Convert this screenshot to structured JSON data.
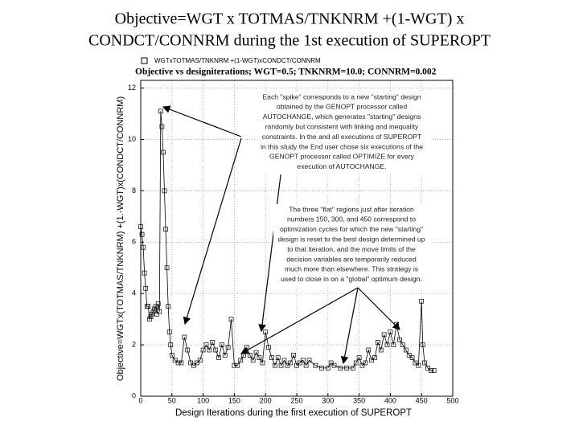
{
  "slide_title": [
    "Objective=WGT x TOTMAS/TNKNRM +(1-WGT) x",
    "CONDCT/CONNRM during the 1st execution of SUPEROPT"
  ],
  "chart_data": {
    "type": "line",
    "title": "Objective vs designiterations; WGT=0.5; TNKNRM=10.0; CONNRM=0.002",
    "x_label": "Design Iterations during the first execution of SUPEROPT",
    "y_label": "Objective=WGTx(TOTMAS/TNKNRM) +(1.-WGT)x(CONDCT/CONNRM)",
    "xlim": [
      0,
      500
    ],
    "xticks": [
      0,
      50,
      100,
      150,
      200,
      250,
      300,
      350,
      400,
      450,
      500
    ],
    "ylim": [
      0,
      12.3
    ],
    "yticks": [
      0,
      2,
      4,
      6,
      8,
      10,
      12
    ],
    "grid": true,
    "series": [
      {
        "name": "WGTxTOTMAS/TNKNRM +(1-WGT)xCONDCT/CONNRM",
        "color": "#000000",
        "x": [
          0,
          2,
          4,
          6,
          8,
          10,
          12,
          14,
          16,
          18,
          20,
          22,
          24,
          26,
          28,
          30,
          32,
          34,
          36,
          38,
          40,
          42,
          44,
          46,
          48,
          50,
          55,
          60,
          65,
          70,
          75,
          80,
          85,
          90,
          95,
          100,
          105,
          110,
          115,
          120,
          125,
          130,
          135,
          140,
          145,
          150,
          155,
          160,
          165,
          170,
          175,
          180,
          185,
          190,
          195,
          200,
          205,
          210,
          215,
          220,
          225,
          230,
          235,
          240,
          245,
          250,
          255,
          260,
          265,
          270,
          280,
          290,
          300,
          305,
          310,
          320,
          330,
          340,
          345,
          350,
          355,
          360,
          365,
          370,
          375,
          380,
          385,
          390,
          395,
          400,
          405,
          410,
          415,
          420,
          425,
          430,
          435,
          440,
          445,
          450,
          452,
          455,
          460,
          465,
          470
        ],
        "values": [
          6.6,
          6.3,
          5.8,
          4.8,
          4.2,
          3.5,
          3.5,
          3.0,
          3.1,
          3.2,
          3.3,
          3.4,
          3.5,
          3.2,
          3.6,
          3.3,
          11.1,
          10.5,
          9.5,
          8.0,
          6.5,
          5.0,
          3.5,
          2.5,
          2.0,
          1.6,
          1.4,
          1.3,
          1.3,
          2.3,
          1.8,
          1.3,
          1.2,
          1.3,
          1.4,
          1.8,
          2.0,
          1.8,
          2.1,
          1.8,
          1.5,
          2.0,
          1.6,
          1.9,
          3.0,
          1.2,
          1.2,
          1.4,
          1.6,
          1.9,
          1.6,
          1.4,
          1.7,
          1.5,
          1.3,
          2.5,
          1.9,
          1.5,
          1.2,
          1.5,
          1.2,
          1.4,
          1.2,
          1.3,
          1.6,
          1.2,
          1.3,
          1.4,
          1.2,
          1.4,
          1.2,
          1.1,
          1.1,
          1.3,
          1.2,
          1.1,
          1.1,
          1.1,
          1.3,
          1.5,
          1.2,
          1.3,
          1.8,
          1.4,
          1.5,
          2.1,
          1.8,
          2.4,
          2.0,
          2.5,
          2.0,
          2.8,
          2.2,
          2.0,
          1.8,
          1.6,
          1.5,
          1.3,
          1.2,
          3.7,
          2.0,
          1.3,
          1.1,
          1.0,
          1.0
        ]
      }
    ],
    "annotations": [
      [
        "Each \"spike\" corresponds to a new \"starting\" design",
        "obtained by the GENOPT processor called",
        "AUTOCHANGE, which generates \"starting\" designs",
        "randomly but consistent with linking and inequality",
        "constraints. In the and all executions of SUPEROPT",
        "in this study the End user chose six executions of the",
        "GENOPT processor called OPTIMIZE for every",
        "execution of AUTOCHANGE."
      ],
      [
        "The three \"flat\" regions just after iteration",
        "numbers 150, 300, and 450 correspond to",
        "optimization cycles for which the new \"starting\"",
        "design is reset to the best design determined up",
        "to that iteration, and the move limits of the",
        "decision variables are temporarily reduced",
        "much more than elsewhere. This strategy is",
        "used to close in on a \"global\" optimum design."
      ]
    ]
  }
}
